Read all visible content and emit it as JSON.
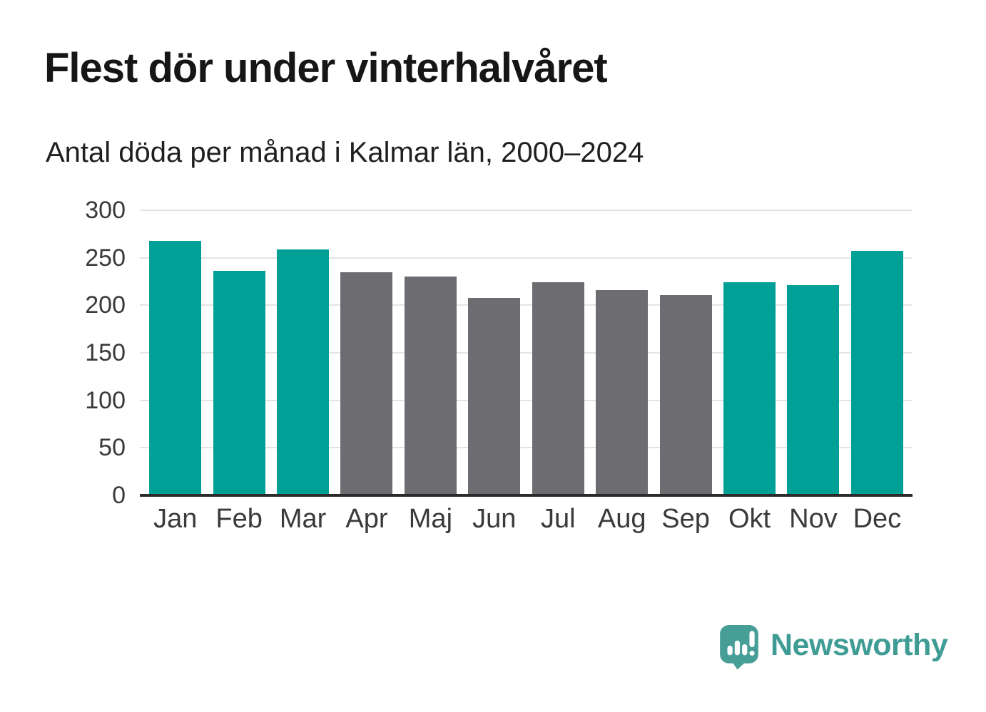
{
  "chart_data": {
    "type": "bar",
    "title": "Flest dör under vinterhalvåret",
    "subtitle": "Antal döda per månad i Kalmar län, 2000–2024",
    "categories": [
      "Jan",
      "Feb",
      "Mar",
      "Apr",
      "Maj",
      "Jun",
      "Jul",
      "Aug",
      "Sep",
      "Okt",
      "Nov",
      "Dec"
    ],
    "values": [
      268,
      236,
      259,
      235,
      230,
      208,
      224,
      216,
      211,
      224,
      221,
      257
    ],
    "bar_colors": [
      "winter",
      "winter",
      "winter",
      "summer",
      "summer",
      "summer",
      "summer",
      "summer",
      "summer",
      "winter",
      "winter",
      "winter"
    ],
    "color_map": {
      "winter": "#00a096",
      "summer": "#6d6c71"
    },
    "xlabel": "",
    "ylabel": "",
    "ylim": [
      0,
      300
    ],
    "ytick_step": 50,
    "yticks": [
      0,
      50,
      100,
      150,
      200,
      250,
      300
    ],
    "grid": "horizontal",
    "legend": "none"
  },
  "style_colors": {
    "grid": "#e4e4e4",
    "axis": "#2b2b2b",
    "tick_text": "#3a3a3a",
    "title_text": "#161616",
    "logo_teal": "#479e97",
    "logo_text_teal": "#3f9c94"
  },
  "branding": {
    "name": "Newsworthy",
    "icon": "newsworthy-chart-bubble-icon"
  }
}
